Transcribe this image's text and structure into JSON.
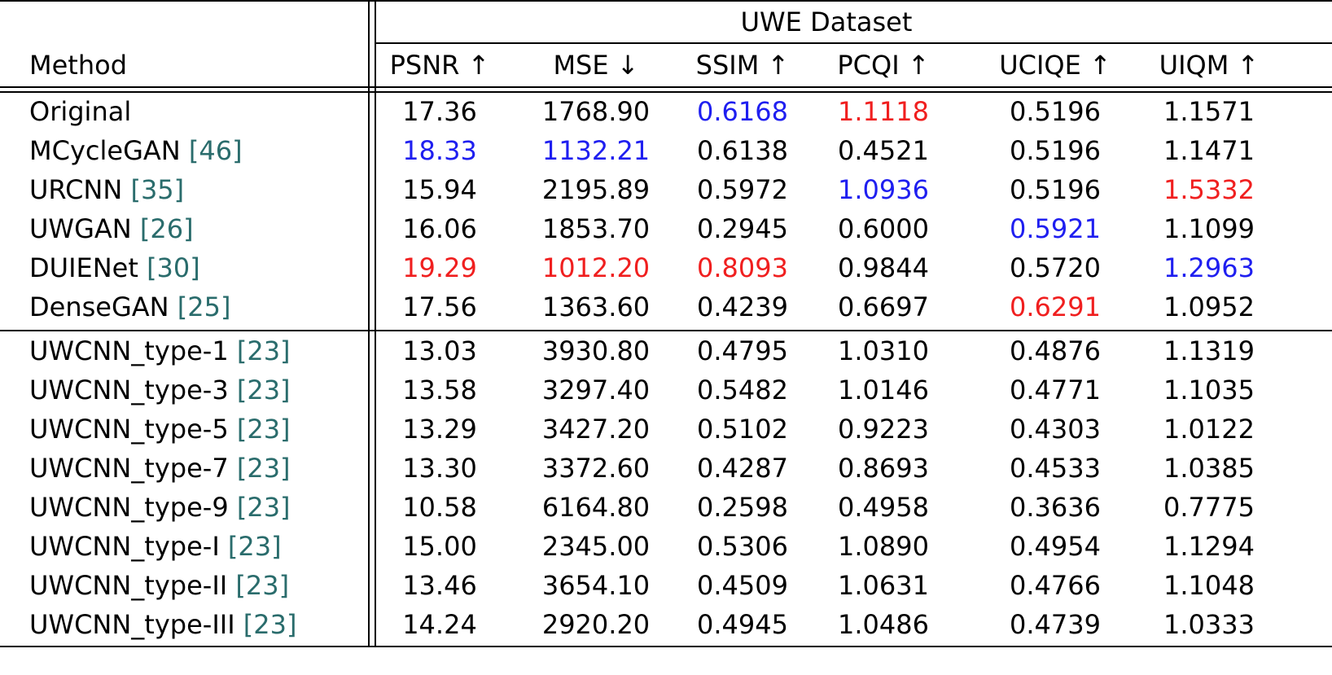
{
  "table": {
    "group_header": "UWE Dataset",
    "method_header": "Method",
    "metrics": [
      "PSNR ↑",
      "MSE ↓",
      "SSIM ↑",
      "PCQI ↑",
      "UCIQE ↑",
      "UIQM ↑"
    ],
    "rows": [
      {
        "method": "Original",
        "ref": "",
        "values": [
          "17.36",
          "1768.90",
          "0.6168",
          "1.1118",
          "0.5196",
          "1.1571"
        ],
        "colors": [
          "",
          "",
          "blue",
          "red",
          "",
          ""
        ]
      },
      {
        "method": "MCycleGAN ",
        "ref": "[46]",
        "values": [
          "18.33",
          "1132.21",
          "0.6138",
          "0.4521",
          "0.5196",
          "1.1471"
        ],
        "colors": [
          "blue",
          "blue",
          "",
          "",
          "",
          ""
        ]
      },
      {
        "method": "URCNN ",
        "ref": "[35]",
        "values": [
          "15.94",
          "2195.89",
          "0.5972",
          "1.0936",
          "0.5196",
          "1.5332"
        ],
        "colors": [
          "",
          "",
          "",
          "blue",
          "",
          "red"
        ]
      },
      {
        "method": "UWGAN ",
        "ref": "[26]",
        "values": [
          "16.06",
          "1853.70",
          "0.2945",
          "0.6000",
          "0.5921",
          "1.1099"
        ],
        "colors": [
          "",
          "",
          "",
          "",
          "blue",
          ""
        ]
      },
      {
        "method": "DUIENet ",
        "ref": "[30]",
        "values": [
          "19.29",
          "1012.20",
          "0.8093",
          "0.9844",
          "0.5720",
          "1.2963"
        ],
        "colors": [
          "red",
          "red",
          "red",
          "",
          "",
          "blue"
        ]
      },
      {
        "method": "DenseGAN ",
        "ref": "[25]",
        "values": [
          "17.56",
          "1363.60",
          "0.4239",
          "0.6697",
          "0.6291",
          "1.0952"
        ],
        "colors": [
          "",
          "",
          "",
          "",
          "red",
          ""
        ]
      },
      {
        "method": "UWCNN_type-1 ",
        "ref": "[23]",
        "values": [
          "13.03",
          "3930.80",
          "0.4795",
          "1.0310",
          "0.4876",
          "1.1319"
        ],
        "colors": [
          "",
          "",
          "",
          "",
          "",
          ""
        ]
      },
      {
        "method": "UWCNN_type-3 ",
        "ref": "[23]",
        "values": [
          "13.58",
          "3297.40",
          "0.5482",
          "1.0146",
          "0.4771",
          "1.1035"
        ],
        "colors": [
          "",
          "",
          "",
          "",
          "",
          ""
        ]
      },
      {
        "method": "UWCNN_type-5 ",
        "ref": "[23]",
        "values": [
          "13.29",
          "3427.20",
          "0.5102",
          "0.9223",
          "0.4303",
          "1.0122"
        ],
        "colors": [
          "",
          "",
          "",
          "",
          "",
          ""
        ]
      },
      {
        "method": "UWCNN_type-7 ",
        "ref": "[23]",
        "values": [
          "13.30",
          "3372.60",
          "0.4287",
          "0.8693",
          "0.4533",
          "1.0385"
        ],
        "colors": [
          "",
          "",
          "",
          "",
          "",
          ""
        ]
      },
      {
        "method": "UWCNN_type-9 ",
        "ref": "[23]",
        "values": [
          "10.58",
          "6164.80",
          "0.2598",
          "0.4958",
          "0.3636",
          "0.7775"
        ],
        "colors": [
          "",
          "",
          "",
          "",
          "",
          ""
        ]
      },
      {
        "method": "UWCNN_type-I ",
        "ref": "[23]",
        "values": [
          "15.00",
          "2345.00",
          "0.5306",
          "1.0890",
          "0.4954",
          "1.1294"
        ],
        "colors": [
          "",
          "",
          "",
          "",
          "",
          ""
        ]
      },
      {
        "method": "UWCNN_type-II ",
        "ref": "[23]",
        "values": [
          "13.46",
          "3654.10",
          "0.4509",
          "1.0631",
          "0.4766",
          "1.1048"
        ],
        "colors": [
          "",
          "",
          "",
          "",
          "",
          ""
        ]
      },
      {
        "method": "UWCNN_type-III ",
        "ref": "[23]",
        "values": [
          "14.24",
          "2920.20",
          "0.4945",
          "1.0486",
          "0.4739",
          "1.0333"
        ],
        "colors": [
          "",
          "",
          "",
          "",
          "",
          ""
        ]
      }
    ]
  }
}
